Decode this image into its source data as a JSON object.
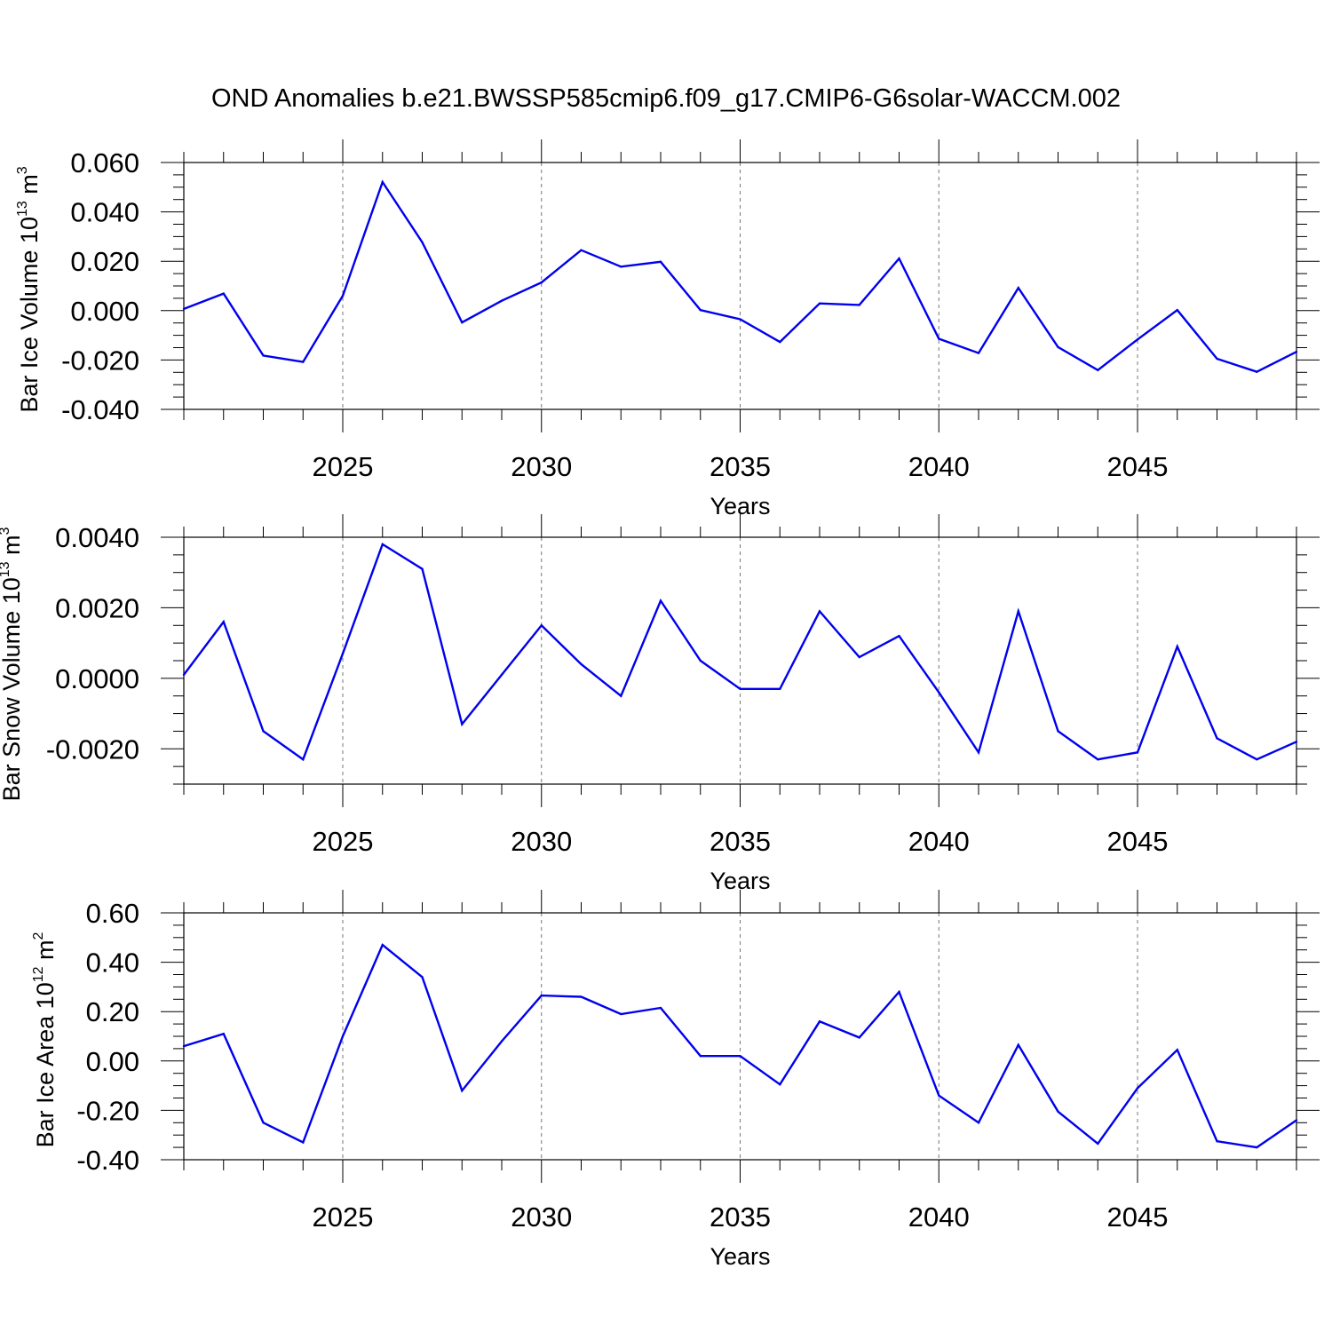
{
  "figure": {
    "title": "OND Anomalies b.e21.BWSSP585cmip6.f09_g17.CMIP6-G6solar-WACCM.002"
  },
  "chart_data": [
    {
      "type": "line",
      "ylabel": "Bar Ice Volume 10",
      "ylabel_exp": "13",
      "ylabel_unit": " m",
      "ylabel_unit_exp": "3",
      "xlabel": "Years",
      "xlim": [
        2021,
        2049
      ],
      "ylim": [
        -0.04,
        0.06
      ],
      "x_ticks": [
        2025,
        2030,
        2035,
        2040,
        2045
      ],
      "x_tick_labels": [
        "2025",
        "2030",
        "2035",
        "2040",
        "2045"
      ],
      "y_ticks": [
        -0.04,
        -0.02,
        0.0,
        0.02,
        0.04,
        0.06
      ],
      "y_tick_labels": [
        "-0.040",
        "-0.020",
        "0.000",
        "0.020",
        "0.040",
        "0.060"
      ],
      "y_minor_step": 0.005,
      "grid": "vertical dashed at major x ticks",
      "line_color": "#0000ee",
      "x": [
        2021,
        2022,
        2023,
        2024,
        2025,
        2026,
        2027,
        2028,
        2029,
        2030,
        2031,
        2032,
        2033,
        2034,
        2035,
        2036,
        2037,
        2038,
        2039,
        2040,
        2041,
        2042,
        2043,
        2044,
        2045,
        2046,
        2047,
        2048,
        2049
      ],
      "values": [
        0.0007,
        0.0069,
        -0.0182,
        -0.0208,
        0.006,
        0.0521,
        0.0277,
        -0.0048,
        0.004,
        0.0114,
        0.0245,
        0.0178,
        0.0198,
        0.0002,
        -0.0035,
        -0.0127,
        0.0029,
        0.0023,
        0.0211,
        -0.0114,
        -0.0172,
        0.0092,
        -0.0148,
        -0.0241,
        -0.0117,
        0.0002,
        -0.0195,
        -0.0248,
        -0.0167
      ]
    },
    {
      "type": "line",
      "ylabel": "Bar Snow Volume 10",
      "ylabel_exp": "13",
      "ylabel_unit": " m",
      "ylabel_unit_exp": "3",
      "xlabel": "Years",
      "xlim": [
        2021,
        2049
      ],
      "ylim": [
        -0.003,
        0.004
      ],
      "x_ticks": [
        2025,
        2030,
        2035,
        2040,
        2045
      ],
      "x_tick_labels": [
        "2025",
        "2030",
        "2035",
        "2040",
        "2045"
      ],
      "y_ticks": [
        -0.002,
        0.0,
        0.002,
        0.004
      ],
      "y_tick_labels": [
        "-0.0020",
        "0.0000",
        "0.0020",
        "0.0040"
      ],
      "y_minor_step": 0.0005,
      "grid": "vertical dashed at major x ticks",
      "line_color": "#0000ee",
      "x": [
        2021,
        2022,
        2023,
        2024,
        2025,
        2026,
        2027,
        2028,
        2029,
        2030,
        2031,
        2032,
        2033,
        2034,
        2035,
        2036,
        2037,
        2038,
        2039,
        2040,
        2041,
        2042,
        2043,
        2044,
        2045,
        2046,
        2047,
        2048,
        2049
      ],
      "values": [
        0.0001,
        0.0016,
        -0.0015,
        -0.0023,
        0.0007,
        0.0038,
        0.0031,
        -0.0013,
        0.0001,
        0.0015,
        0.0004,
        -0.0005,
        0.0022,
        0.0005,
        -0.0003,
        -0.0003,
        0.0019,
        0.0006,
        0.0012,
        -0.0004,
        -0.0021,
        0.0019,
        -0.0015,
        -0.0023,
        -0.0021,
        0.0009,
        -0.0017,
        -0.0023,
        -0.0018
      ]
    },
    {
      "type": "line",
      "ylabel": "Bar Ice Area 10",
      "ylabel_exp": "12",
      "ylabel_unit": " m",
      "ylabel_unit_exp": "2",
      "xlabel": "Years",
      "xlim": [
        2021,
        2049
      ],
      "ylim": [
        -0.4,
        0.6
      ],
      "x_ticks": [
        2025,
        2030,
        2035,
        2040,
        2045
      ],
      "x_tick_labels": [
        "2025",
        "2030",
        "2035",
        "2040",
        "2045"
      ],
      "y_ticks": [
        -0.4,
        -0.2,
        0.0,
        0.2,
        0.4,
        0.6
      ],
      "y_tick_labels": [
        "-0.40",
        "-0.20",
        "0.00",
        "0.20",
        "0.40",
        "0.60"
      ],
      "y_minor_step": 0.05,
      "grid": "vertical dashed at major x ticks",
      "line_color": "#0000ee",
      "x": [
        2021,
        2022,
        2023,
        2024,
        2025,
        2026,
        2027,
        2028,
        2029,
        2030,
        2031,
        2032,
        2033,
        2034,
        2035,
        2036,
        2037,
        2038,
        2039,
        2040,
        2041,
        2042,
        2043,
        2044,
        2045,
        2046,
        2047,
        2048,
        2049
      ],
      "values": [
        0.06,
        0.11,
        -0.25,
        -0.33,
        0.1,
        0.47,
        0.34,
        -0.12,
        0.08,
        0.265,
        0.26,
        0.19,
        0.215,
        0.02,
        0.02,
        -0.095,
        0.16,
        0.095,
        0.28,
        -0.14,
        -0.25,
        0.065,
        -0.205,
        -0.335,
        -0.11,
        0.045,
        -0.325,
        -0.35,
        -0.24
      ]
    }
  ]
}
